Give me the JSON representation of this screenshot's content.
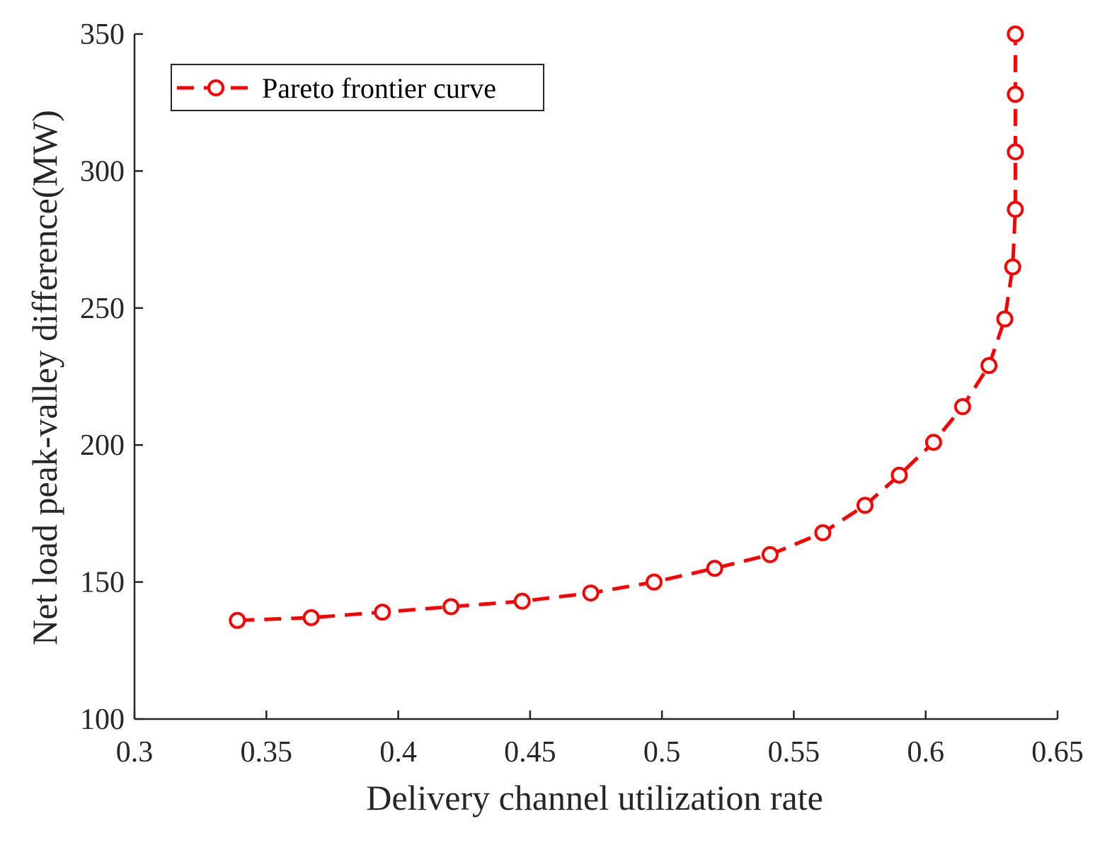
{
  "chart_data": {
    "type": "line",
    "xlabel": "Delivery channel utilization rate",
    "ylabel": "Net load peak-valley difference(MW)",
    "xlim": [
      0.3,
      0.65
    ],
    "ylim": [
      100,
      350
    ],
    "x_ticks": [
      0.3,
      0.35,
      0.4,
      0.45,
      0.5,
      0.55,
      0.6,
      0.65
    ],
    "x_tick_labels": [
      "0.3",
      "0.35",
      "0.4",
      "0.45",
      "0.5",
      "0.55",
      "0.6",
      "0.65"
    ],
    "y_ticks": [
      100,
      150,
      200,
      250,
      300,
      350
    ],
    "y_tick_labels": [
      "100",
      "150",
      "200",
      "250",
      "300",
      "350"
    ],
    "grid": false,
    "legend_position": "top-left",
    "series": [
      {
        "name": "Pareto frontier curve",
        "color": "#ff0000",
        "line_style": "dashed",
        "marker": "circle",
        "x": [
          0.339,
          0.367,
          0.394,
          0.42,
          0.447,
          0.473,
          0.497,
          0.52,
          0.541,
          0.561,
          0.577,
          0.59,
          0.603,
          0.614,
          0.624,
          0.63,
          0.633,
          0.634,
          0.634,
          0.634,
          0.634
        ],
        "y": [
          136,
          137,
          139,
          141,
          143,
          146,
          150,
          155,
          160,
          168,
          178,
          189,
          201,
          214,
          229,
          246,
          265,
          286,
          307,
          328,
          350
        ]
      }
    ]
  }
}
